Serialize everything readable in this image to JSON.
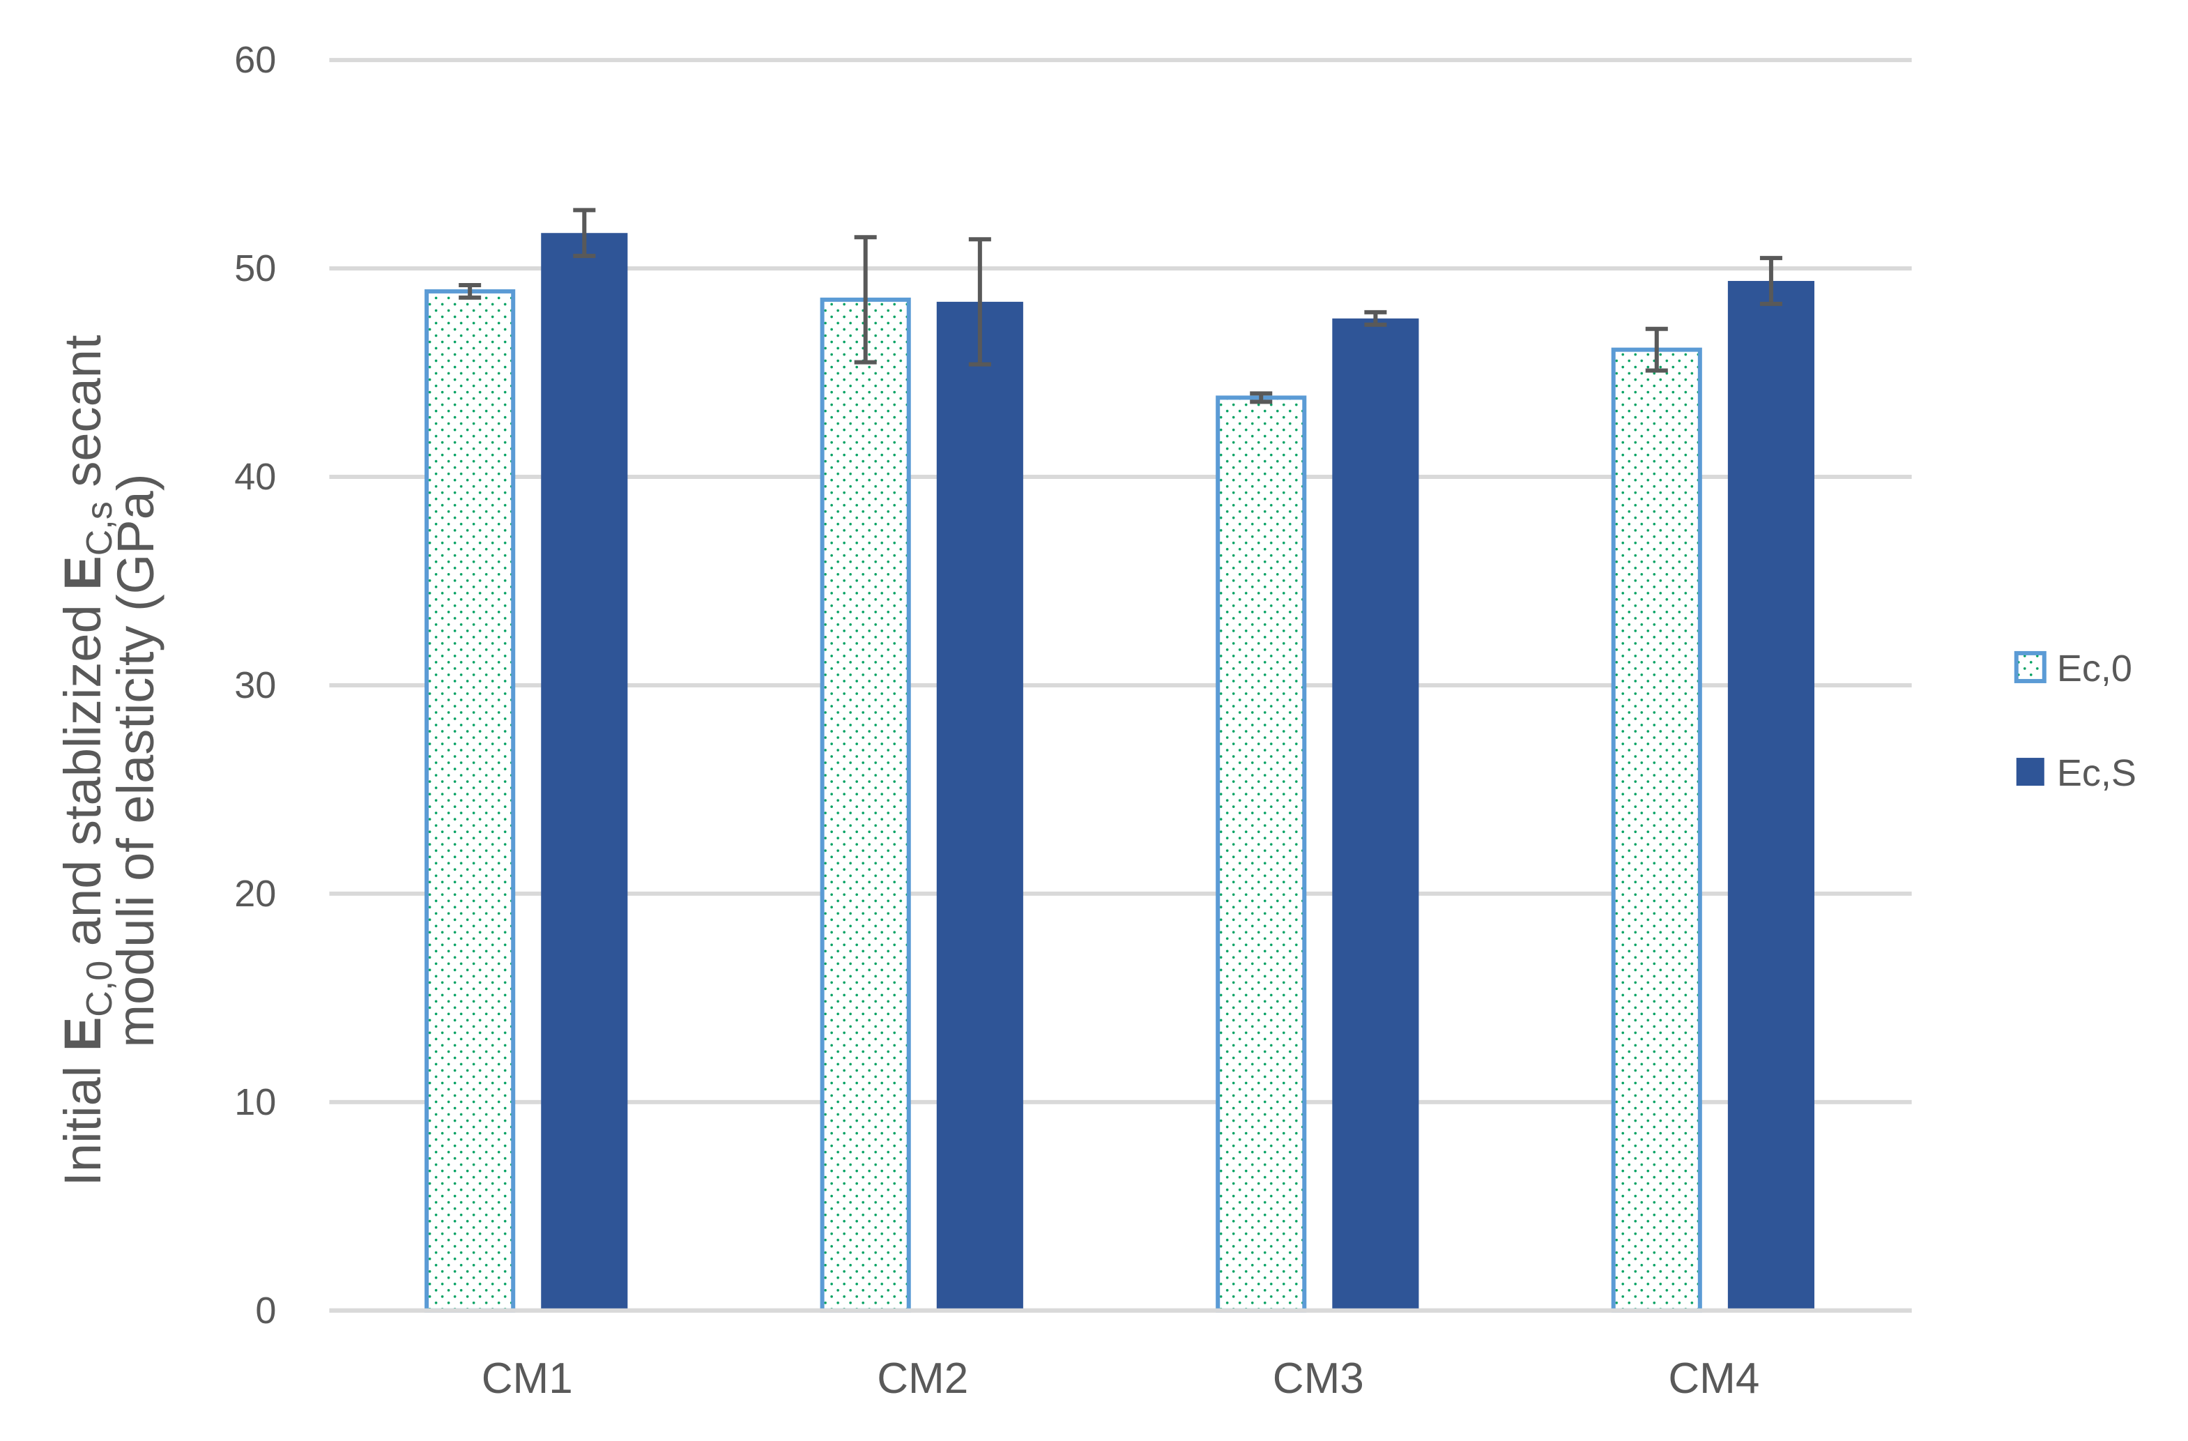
{
  "chart_data": {
    "type": "bar",
    "ylabel_parts": [
      "Initial ",
      "E",
      "C,0",
      " and stablizized ",
      "E",
      "C,s",
      " secant",
      "moduli of elasticity (GPa)"
    ],
    "categories": [
      "CM1",
      "CM2",
      "CM3",
      "CM4"
    ],
    "series": [
      {
        "name": "Ec,0",
        "color": "#5b9bd5",
        "pattern_color": "#00a060",
        "values": [
          48.9,
          48.5,
          43.8,
          46.1
        ],
        "errors": [
          0.3,
          3.0,
          0.2,
          1.0
        ]
      },
      {
        "name": "Ec,S",
        "color": "#2f5597",
        "values": [
          51.7,
          48.4,
          47.6,
          49.4
        ],
        "errors": [
          1.1,
          3.0,
          0.3,
          1.1
        ]
      }
    ],
    "ylim": [
      0,
      60
    ],
    "yticks": [
      0,
      10,
      20,
      30,
      40,
      50,
      60
    ],
    "grid": true,
    "legend": "right"
  }
}
